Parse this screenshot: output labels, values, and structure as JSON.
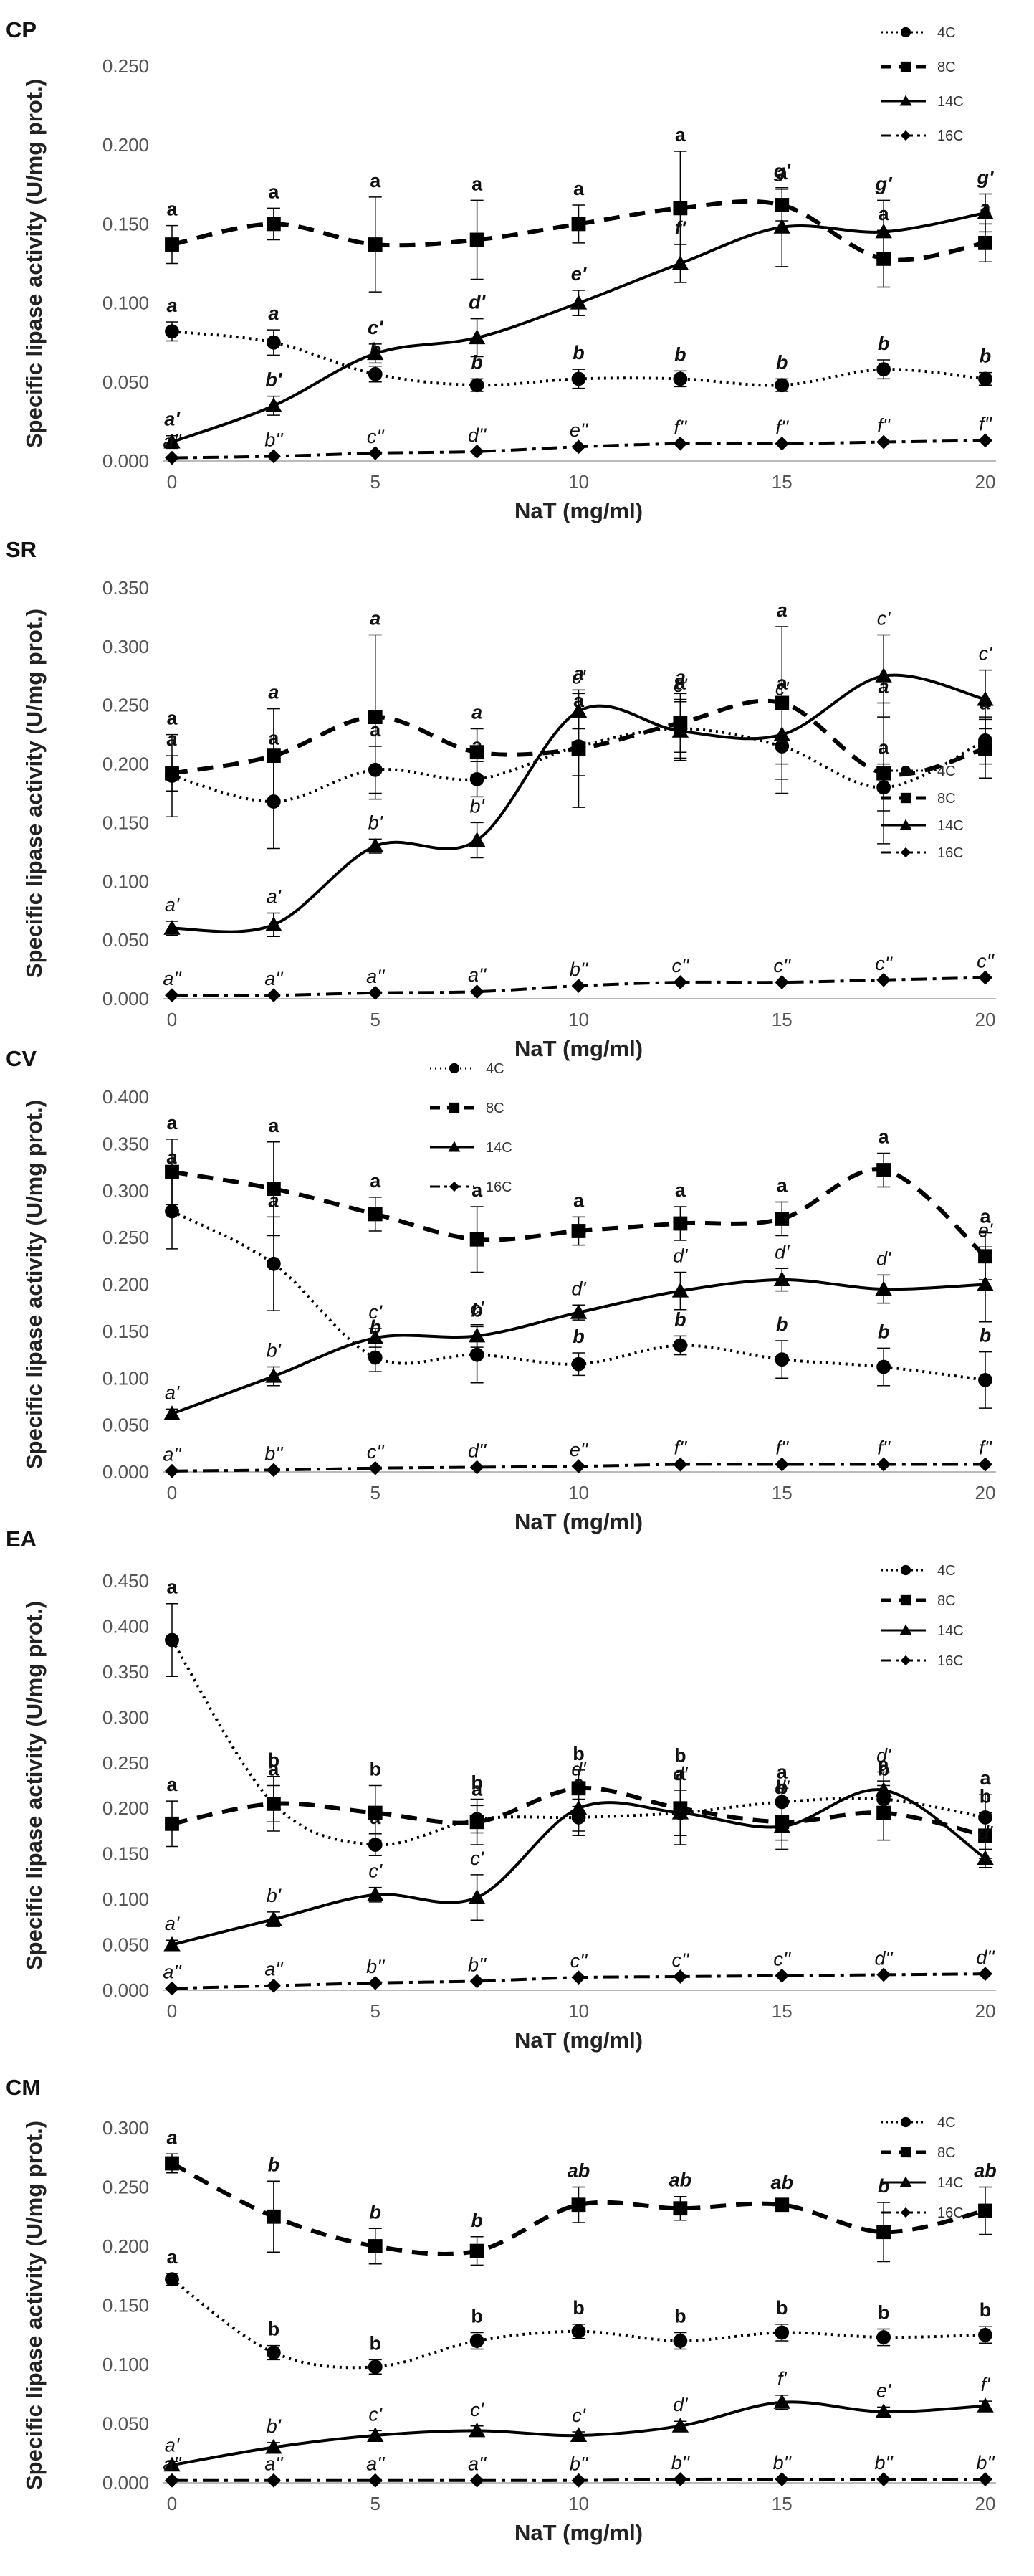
{
  "figure": {
    "x_axis_title": "NaT (mg/ml)",
    "y_axis_title": "Specific lipase activity (U/mg prot.)"
  },
  "colors": {
    "axis": "#bbbbbb",
    "series": "#000000",
    "text": "#222222",
    "tick": "#555555"
  },
  "chart_data": [
    {
      "type": "line",
      "title": "CP",
      "xlabel": "NaT (mg/ml)",
      "ylabel": "Specific lipase activity (U/mg prot.)",
      "x": [
        0,
        2.5,
        5,
        7.5,
        10,
        12.5,
        15,
        17.5,
        20
      ],
      "xticks": [
        0,
        5,
        10,
        15,
        20
      ],
      "ylim": [
        0,
        0.25
      ],
      "yticks": [
        "0.000",
        "0.050",
        "0.100",
        "0.150",
        "0.200",
        "0.250"
      ],
      "legend": [
        "4C",
        "8C",
        "14C",
        "16C"
      ],
      "legend_position": "top-right",
      "series": [
        {
          "name": "4C",
          "values": [
            0.082,
            0.075,
            0.055,
            0.048,
            0.052,
            0.052,
            0.048,
            0.058,
            0.052
          ],
          "errors": [
            0.006,
            0.008,
            0.005,
            0.004,
            0.006,
            0.005,
            0.004,
            0.006,
            0.004
          ],
          "labels": [
            "a",
            "a",
            "b",
            "b",
            "b",
            "b",
            "b",
            "b",
            "b"
          ],
          "label_style": "bold-italic"
        },
        {
          "name": "8C",
          "values": [
            0.137,
            0.15,
            0.137,
            0.14,
            0.15,
            0.16,
            0.162,
            0.128,
            0.138
          ],
          "errors": [
            0.012,
            0.01,
            0.03,
            0.025,
            0.012,
            0.036,
            0.01,
            0.018,
            0.012
          ],
          "labels": [
            "a",
            "a",
            "a",
            "a",
            "a",
            "a",
            "a",
            "a",
            "a"
          ],
          "label_style": "bold"
        },
        {
          "name": "14C",
          "values": [
            0.012,
            0.035,
            0.068,
            0.078,
            0.1,
            0.125,
            0.148,
            0.145,
            0.157
          ],
          "errors": [
            0.004,
            0.006,
            0.006,
            0.012,
            0.008,
            0.012,
            0.025,
            0.02,
            0.012
          ],
          "labels": [
            "a'",
            "b'",
            "c'",
            "d'",
            "e'",
            "f'",
            "g'",
            "g'",
            "g'"
          ],
          "label_style": "bold-italic"
        },
        {
          "name": "16C",
          "values": [
            0.002,
            0.003,
            0.005,
            0.006,
            0.009,
            0.011,
            0.011,
            0.012,
            0.013
          ],
          "errors": [
            0,
            0,
            0,
            0,
            0,
            0,
            0,
            0,
            0
          ],
          "labels": [
            "a''",
            "b''",
            "c''",
            "d''",
            "e''",
            "f''",
            "f''",
            "f''",
            "f''"
          ],
          "label_style": "italic"
        }
      ]
    },
    {
      "type": "line",
      "title": "SR",
      "xlabel": "NaT (mg/ml)",
      "ylabel": "Specific lipase activity (U/mg prot.)",
      "x": [
        0,
        2.5,
        5,
        7.5,
        10,
        12.5,
        15,
        17.5,
        20
      ],
      "xticks": [
        0,
        5,
        10,
        15,
        20
      ],
      "ylim": [
        0,
        0.35
      ],
      "yticks": [
        "0.000",
        "0.050",
        "0.100",
        "0.150",
        "0.200",
        "0.250",
        "0.300",
        "0.350"
      ],
      "legend": [
        "4C",
        "8C",
        "14C",
        "16C"
      ],
      "legend_position": "right",
      "series": [
        {
          "name": "4C",
          "values": [
            0.19,
            0.168,
            0.195,
            0.187,
            0.215,
            0.23,
            0.215,
            0.18,
            0.22
          ],
          "errors": [
            0.035,
            0.04,
            0.02,
            0.015,
            0.025,
            0.025,
            0.04,
            0.02,
            0.02
          ],
          "labels": [
            "a",
            "a",
            "a",
            "a",
            "a",
            "a",
            "a",
            "a",
            "a"
          ],
          "label_style": "bold"
        },
        {
          "name": "8C",
          "values": [
            0.192,
            0.207,
            0.24,
            0.21,
            0.213,
            0.235,
            0.252,
            0.192,
            0.213
          ],
          "errors": [
            0.015,
            0.04,
            0.07,
            0.02,
            0.05,
            0.025,
            0.065,
            0.06,
            0.025
          ],
          "labels": [
            "a",
            "a",
            "a",
            "a",
            "a",
            "a",
            "a",
            "a",
            "a"
          ],
          "label_style": "bold-italic"
        },
        {
          "name": "14C",
          "values": [
            0.06,
            0.063,
            0.13,
            0.135,
            0.245,
            0.228,
            0.225,
            0.275,
            0.255
          ],
          "errors": [
            0.006,
            0.01,
            0.006,
            0.015,
            0.015,
            0.025,
            0.025,
            0.035,
            0.025
          ],
          "labels": [
            "a'",
            "a'",
            "b'",
            "b'",
            "c'",
            "c'",
            "c'",
            "c'",
            "c'"
          ],
          "label_style": "italic"
        },
        {
          "name": "16C",
          "values": [
            0.003,
            0.003,
            0.005,
            0.006,
            0.011,
            0.014,
            0.014,
            0.016,
            0.018
          ],
          "errors": [
            0,
            0,
            0,
            0,
            0,
            0,
            0,
            0,
            0
          ],
          "labels": [
            "a''",
            "a''",
            "a''",
            "a''",
            "b''",
            "c''",
            "c''",
            "c''",
            "c''"
          ],
          "label_style": "italic"
        }
      ]
    },
    {
      "type": "line",
      "title": "CV",
      "xlabel": "NaT (mg/ml)",
      "ylabel": "Specific lipase activity (U/mg prot.)",
      "x": [
        0,
        2.5,
        5,
        7.5,
        10,
        12.5,
        15,
        17.5,
        20
      ],
      "xticks": [
        0,
        5,
        10,
        15,
        20
      ],
      "ylim": [
        0,
        0.4
      ],
      "yticks": [
        "0.000",
        "0.050",
        "0.100",
        "0.150",
        "0.200",
        "0.250",
        "0.300",
        "0.350",
        "0.400"
      ],
      "legend": [
        "4C",
        "8C",
        "14C",
        "16C"
      ],
      "legend_position": "top-left",
      "series": [
        {
          "name": "4C",
          "values": [
            0.278,
            0.222,
            0.122,
            0.125,
            0.115,
            0.135,
            0.12,
            0.112,
            0.098
          ],
          "errors": [
            0.04,
            0.05,
            0.015,
            0.03,
            0.012,
            0.01,
            0.02,
            0.02,
            0.03
          ],
          "labels": [
            "a",
            "a",
            "b",
            "b",
            "b",
            "b",
            "b",
            "b",
            "b"
          ],
          "label_style": "bold-italic"
        },
        {
          "name": "8C",
          "values": [
            0.32,
            0.302,
            0.275,
            0.248,
            0.257,
            0.265,
            0.27,
            0.322,
            0.23
          ],
          "errors": [
            0.035,
            0.05,
            0.018,
            0.035,
            0.015,
            0.018,
            0.018,
            0.018,
            0.025
          ],
          "labels": [
            "a",
            "a",
            "a",
            "a",
            "a",
            "a",
            "a",
            "a",
            "a"
          ],
          "label_style": "bold"
        },
        {
          "name": "14C",
          "values": [
            0.062,
            0.102,
            0.143,
            0.145,
            0.17,
            0.193,
            0.205,
            0.195,
            0.2
          ],
          "errors": [
            0.005,
            0.01,
            0.01,
            0.012,
            0.008,
            0.02,
            0.012,
            0.015,
            0.04
          ],
          "labels": [
            "a'",
            "b'",
            "c'",
            "c'",
            "d'",
            "d'",
            "d'",
            "d'",
            "e'"
          ],
          "label_style": "italic"
        },
        {
          "name": "16C",
          "values": [
            0.001,
            0.002,
            0.004,
            0.005,
            0.006,
            0.008,
            0.008,
            0.008,
            0.008
          ],
          "errors": [
            0,
            0,
            0,
            0,
            0,
            0,
            0,
            0,
            0
          ],
          "labels": [
            "a''",
            "b''",
            "c''",
            "d''",
            "e''",
            "f''",
            "f''",
            "f''",
            "f''"
          ],
          "label_style": "italic"
        }
      ]
    },
    {
      "type": "line",
      "title": "EA",
      "xlabel": "NaT (mg/ml)",
      "ylabel": "Specific lipase activity (U/mg prot.)",
      "x": [
        0,
        2.5,
        5,
        7.5,
        10,
        12.5,
        15,
        17.5,
        20
      ],
      "xticks": [
        0,
        5,
        10,
        15,
        20
      ],
      "ylim": [
        0,
        0.45
      ],
      "yticks": [
        "0.000",
        "0.050",
        "0.100",
        "0.150",
        "0.200",
        "0.250",
        "0.300",
        "0.350",
        "0.400",
        "0.450"
      ],
      "legend": [
        "4C",
        "8C",
        "14C",
        "16C"
      ],
      "legend_position": "top-right",
      "series": [
        {
          "name": "4C",
          "values": [
            0.385,
            0.205,
            0.16,
            0.188,
            0.19,
            0.195,
            0.207,
            0.21,
            0.19
          ],
          "errors": [
            0.04,
            0.02,
            0.012,
            0.015,
            0.02,
            0.025,
            0.015,
            0.02,
            0.025
          ],
          "labels": [
            "a",
            "a",
            "a",
            "a",
            "a",
            "a",
            "a",
            "a",
            "a"
          ],
          "label_style": "bold"
        },
        {
          "name": "8C",
          "values": [
            0.183,
            0.205,
            0.195,
            0.185,
            0.222,
            0.2,
            0.185,
            0.195,
            0.17
          ],
          "errors": [
            0.025,
            0.03,
            0.03,
            0.025,
            0.02,
            0.04,
            0.02,
            0.03,
            0.025
          ],
          "labels": [
            "a",
            "b",
            "b",
            "b",
            "b",
            "b",
            "b",
            "b",
            "b"
          ],
          "label_style": "bold"
        },
        {
          "name": "14C",
          "values": [
            0.05,
            0.078,
            0.105,
            0.102,
            0.2,
            0.195,
            0.18,
            0.22,
            0.145
          ],
          "errors": [
            0.005,
            0.008,
            0.008,
            0.025,
            0.025,
            0.025,
            0.025,
            0.02,
            0.01
          ],
          "labels": [
            "a'",
            "b'",
            "c'",
            "c'",
            "d'",
            "d'",
            "d'",
            "d'",
            "d'"
          ],
          "label_style": "italic"
        },
        {
          "name": "16C",
          "values": [
            0.002,
            0.005,
            0.008,
            0.01,
            0.014,
            0.015,
            0.016,
            0.017,
            0.018
          ],
          "errors": [
            0,
            0,
            0,
            0,
            0,
            0,
            0,
            0,
            0
          ],
          "labels": [
            "a''",
            "a''",
            "b''",
            "b''",
            "c''",
            "c''",
            "c''",
            "d''",
            "d''"
          ],
          "label_style": "italic"
        }
      ]
    },
    {
      "type": "line",
      "title": "CM",
      "xlabel": "NaT (mg/ml)",
      "ylabel": "Specific lipase activity (U/mg prot.)",
      "x": [
        0,
        2.5,
        5,
        7.5,
        10,
        12.5,
        15,
        17.5,
        20
      ],
      "xticks": [
        0,
        5,
        10,
        15,
        20
      ],
      "ylim": [
        0,
        0.3
      ],
      "yticks": [
        "0.000",
        "0.050",
        "0.100",
        "0.150",
        "0.200",
        "0.250",
        "0.300"
      ],
      "legend": [
        "4C",
        "8C",
        "14C",
        "16C"
      ],
      "legend_position": "top-right",
      "series": [
        {
          "name": "4C",
          "values": [
            0.172,
            0.11,
            0.098,
            0.12,
            0.128,
            0.12,
            0.127,
            0.123,
            0.125
          ],
          "errors": [
            0.005,
            0.006,
            0.006,
            0.007,
            0.006,
            0.007,
            0.007,
            0.007,
            0.007
          ],
          "labels": [
            "a",
            "b",
            "b",
            "b",
            "b",
            "b",
            "b",
            "b",
            "b"
          ],
          "label_style": "bold"
        },
        {
          "name": "8C",
          "values": [
            0.27,
            0.225,
            0.2,
            0.196,
            0.235,
            0.232,
            0.235,
            0.212,
            0.23
          ],
          "errors": [
            0.008,
            0.03,
            0.015,
            0.012,
            0.015,
            0.01,
            0.005,
            0.025,
            0.02
          ],
          "labels": [
            "a",
            "b",
            "b",
            "b",
            "ab",
            "ab",
            "ab",
            "b",
            "ab"
          ],
          "label_style": "bold-italic"
        },
        {
          "name": "14C",
          "values": [
            0.015,
            0.03,
            0.04,
            0.044,
            0.04,
            0.048,
            0.068,
            0.06,
            0.065
          ],
          "errors": [
            0.003,
            0.004,
            0.004,
            0.004,
            0.003,
            0.004,
            0.006,
            0.004,
            0.004
          ],
          "labels": [
            "a'",
            "b'",
            "c'",
            "c'",
            "c'",
            "d'",
            "f'",
            "e'",
            "f'"
          ],
          "label_style": "italic"
        },
        {
          "name": "16C",
          "values": [
            0.002,
            0.002,
            0.002,
            0.002,
            0.002,
            0.003,
            0.003,
            0.003,
            0.003
          ],
          "errors": [
            0,
            0,
            0,
            0,
            0,
            0,
            0,
            0,
            0
          ],
          "labels": [
            "a''",
            "a''",
            "a''",
            "a''",
            "b''",
            "b''",
            "b''",
            "b''",
            "b''"
          ],
          "label_style": "italic"
        }
      ]
    }
  ]
}
